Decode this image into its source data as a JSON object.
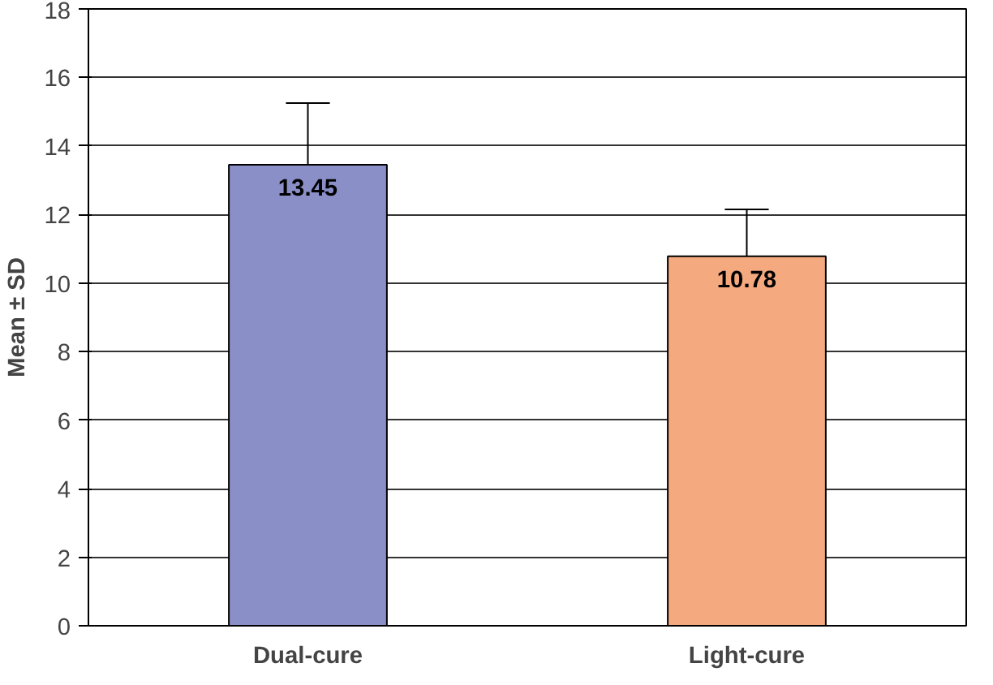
{
  "chart_data": {
    "type": "bar",
    "ylabel": "Mean ± SD",
    "categories": [
      "Dual-cure",
      "Light-cure"
    ],
    "values": [
      13.45,
      10.78
    ],
    "colors": [
      "#8a8fc8",
      "#f4a97f"
    ],
    "errors": [
      [
        13.45,
        15.25
      ],
      [
        10.78,
        12.15
      ]
    ],
    "ylim": [
      0,
      18
    ],
    "yticks": [
      0,
      2,
      4,
      6,
      8,
      10,
      12,
      14,
      16,
      18
    ],
    "grid": "y",
    "data_labels": true
  }
}
